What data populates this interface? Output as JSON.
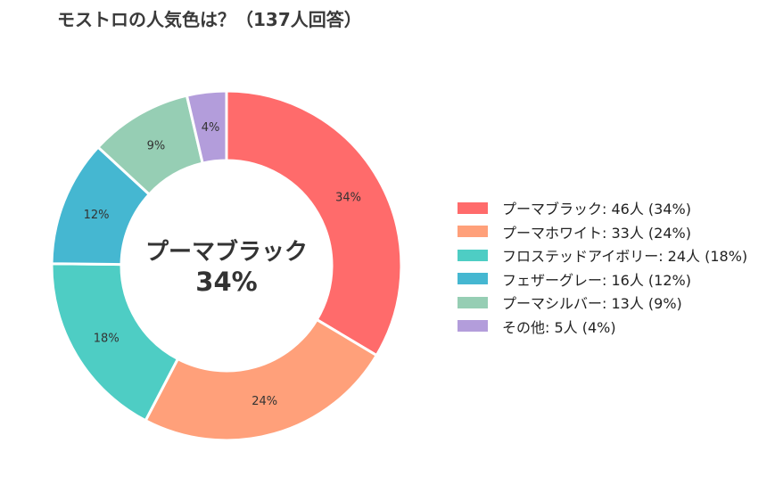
{
  "title": "モストロの人気色は？（137人回答）",
  "center": {
    "label": "プーマブラック",
    "percent": "34%"
  },
  "chart_data": {
    "type": "pie",
    "variant": "donut",
    "title": "モストロの人気色は？（137人回答）",
    "total": 137,
    "slices": [
      {
        "label": "プーマブラック",
        "value": 46,
        "percent": 34,
        "color": "#FF6B6B",
        "legend": "プーマブラック:  46人 (34%)",
        "pct_label": "34%"
      },
      {
        "label": "プーマホワイト",
        "value": 33,
        "percent": 24,
        "color": "#FFA07A",
        "legend": "プーマホワイト:  33人 (24%)",
        "pct_label": "24%"
      },
      {
        "label": "フロステッドアイボリー",
        "value": 24,
        "percent": 18,
        "color": "#4ECDC4",
        "legend": "フロステッドアイボリー:  24人 (18%)",
        "pct_label": "18%"
      },
      {
        "label": "フェザーグレー",
        "value": 16,
        "percent": 12,
        "color": "#45B7D1",
        "legend": "フェザーグレー:  16人 (12%)",
        "pct_label": "12%"
      },
      {
        "label": "プーマシルバー",
        "value": 13,
        "percent": 9,
        "color": "#96CEB4",
        "legend": "プーマシルバー:  13人 (9%)",
        "pct_label": "9%"
      },
      {
        "label": "その他",
        "value": 5,
        "percent": 4,
        "color": "#B39DDB",
        "legend": "その他:  5人 (4%)",
        "pct_label": "4%"
      }
    ],
    "start_angle": "12 o'clock",
    "direction": "clockwise",
    "legend_position": "right"
  }
}
